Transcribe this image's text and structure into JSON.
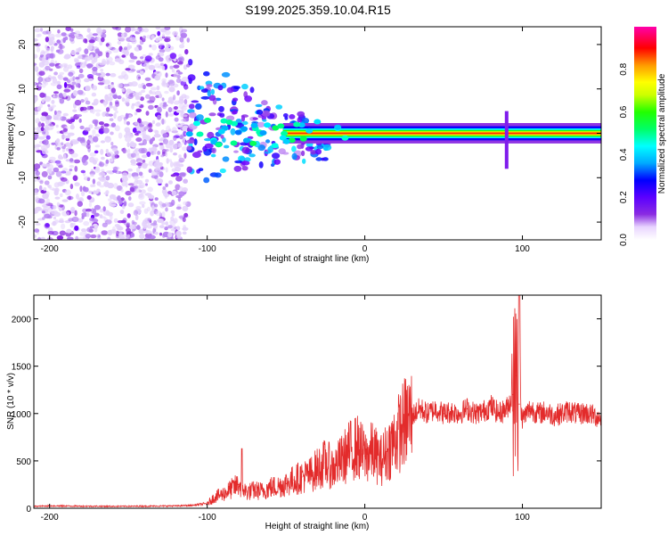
{
  "title": "S199.2025.359.10.04.R15",
  "chart_data": [
    {
      "type": "heatmap",
      "name": "spectrogram",
      "xlabel": "Height of straight line (km)",
      "ylabel": "Frequency (Hz)",
      "xlim": [
        -210,
        150
      ],
      "ylim": [
        -24,
        24
      ],
      "xticks": [
        -200,
        -100,
        0,
        100
      ],
      "xtick_labels": [
        "-200",
        "-100",
        "0",
        "100"
      ],
      "yticks": [
        20,
        10,
        0,
        -10,
        -20
      ],
      "ytick_labels": [
        "20",
        "10",
        "0",
        "-10",
        "-20"
      ],
      "colorbar": {
        "label": "Normalized spectral amplitude",
        "range": [
          0,
          1
        ],
        "ticks": [
          0.0,
          0.2,
          0.4,
          0.6,
          0.8
        ],
        "tick_labels": [
          "0.0",
          "0.2",
          "0.4",
          "0.6",
          "0.8"
        ],
        "colors": [
          "#ffffff",
          "#e9d5ff",
          "#8a2be2",
          "#6a00ff",
          "#0000ff",
          "#00aaff",
          "#00ffff",
          "#00ff66",
          "#22ff00",
          "#ccff00",
          "#ffff00",
          "#ff9900",
          "#ff0000",
          "#ff00aa"
        ]
      },
      "regions": [
        {
          "label": "scattered noise",
          "x": [
            -210,
            -112
          ],
          "freq": [
            -24,
            24
          ],
          "amplitude": 0.08
        },
        {
          "label": "coherent band",
          "x": [
            -112,
            150
          ],
          "freq": [
            -2,
            2
          ],
          "amplitude": 0.9
        }
      ]
    },
    {
      "type": "line",
      "name": "snr",
      "xlabel": "Height of straight line (km)",
      "ylabel": "SNR (10 * v/v)",
      "xlim": [
        -210,
        150
      ],
      "ylim": [
        0,
        2250
      ],
      "xticks": [
        -200,
        -100,
        0,
        100
      ],
      "xtick_labels": [
        "-200",
        "-100",
        "0",
        "100"
      ],
      "yticks": [
        0,
        500,
        1000,
        1500,
        2000
      ],
      "ytick_labels": [
        "0",
        "500",
        "1000",
        "1500",
        "2000"
      ],
      "color": "#e32b2b",
      "series": [
        {
          "name": "SNR",
          "x": [
            -210,
            -200,
            -180,
            -160,
            -140,
            -120,
            -110,
            -100,
            -95,
            -90,
            -85,
            -80,
            -75,
            -70,
            -65,
            -60,
            -55,
            -50,
            -45,
            -40,
            -35,
            -30,
            -25,
            -20,
            -15,
            -10,
            -5,
            0,
            5,
            10,
            15,
            20,
            25,
            30,
            35,
            40,
            45,
            50,
            55,
            60,
            65,
            70,
            75,
            80,
            85,
            90,
            94,
            96,
            98,
            100,
            105,
            110,
            115,
            120,
            125,
            130,
            135,
            140,
            145,
            150
          ],
          "y": [
            20,
            25,
            22,
            20,
            22,
            25,
            30,
            50,
            120,
            150,
            200,
            250,
            170,
            190,
            180,
            220,
            230,
            260,
            300,
            330,
            350,
            420,
            480,
            420,
            500,
            600,
            650,
            550,
            600,
            500,
            620,
            750,
            900,
            980,
            1050,
            1000,
            1050,
            1000,
            1020,
            1000,
            1050,
            1000,
            1020,
            1080,
            1000,
            1050,
            1200,
            1400,
            1100,
            950,
            1050,
            1000,
            1020,
            980,
            1000,
            1030,
            990,
            1010,
            980,
            950
          ]
        }
      ]
    }
  ]
}
